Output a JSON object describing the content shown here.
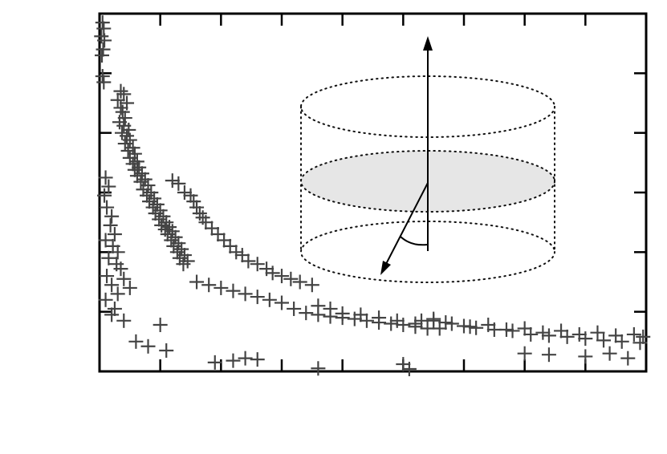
{
  "chart_data": {
    "type": "scatter",
    "title": "",
    "xlabel": "",
    "ylabel": "",
    "xlim": [
      0,
      9
    ],
    "ylim": [
      0,
      6
    ],
    "grid": false,
    "marker": "plus",
    "series": [
      {
        "color": "#444444",
        "points": [
          [
            0.05,
            5.85
          ],
          [
            0.07,
            5.75
          ],
          [
            0.03,
            5.62
          ],
          [
            0.08,
            5.55
          ],
          [
            0.06,
            5.4
          ],
          [
            0.04,
            5.3
          ],
          [
            0.05,
            4.95
          ],
          [
            0.07,
            4.85
          ],
          [
            0.35,
            4.7
          ],
          [
            0.4,
            4.65
          ],
          [
            0.3,
            4.55
          ],
          [
            0.45,
            4.5
          ],
          [
            0.35,
            4.42
          ],
          [
            0.38,
            4.35
          ],
          [
            0.42,
            4.25
          ],
          [
            0.33,
            4.18
          ],
          [
            0.4,
            4.12
          ],
          [
            0.48,
            4.05
          ],
          [
            0.37,
            4.0
          ],
          [
            0.45,
            3.95
          ],
          [
            0.5,
            3.88
          ],
          [
            0.42,
            3.82
          ],
          [
            0.55,
            3.75
          ],
          [
            0.47,
            3.7
          ],
          [
            0.58,
            3.65
          ],
          [
            0.5,
            3.58
          ],
          [
            0.62,
            3.52
          ],
          [
            0.55,
            3.48
          ],
          [
            0.65,
            3.42
          ],
          [
            0.58,
            3.38
          ],
          [
            0.7,
            3.32
          ],
          [
            0.62,
            3.28
          ],
          [
            0.75,
            3.22
          ],
          [
            0.68,
            3.18
          ],
          [
            0.8,
            3.12
          ],
          [
            0.72,
            3.05
          ],
          [
            0.85,
            3.0
          ],
          [
            0.78,
            2.95
          ],
          [
            0.9,
            2.9
          ],
          [
            0.82,
            2.85
          ],
          [
            0.95,
            2.8
          ],
          [
            0.88,
            2.75
          ],
          [
            1.0,
            2.7
          ],
          [
            0.92,
            2.65
          ],
          [
            1.05,
            2.6
          ],
          [
            0.98,
            2.55
          ],
          [
            1.1,
            2.5
          ],
          [
            1.02,
            2.45
          ],
          [
            1.15,
            2.42
          ],
          [
            1.08,
            2.38
          ],
          [
            1.2,
            2.35
          ],
          [
            1.12,
            2.3
          ],
          [
            1.25,
            2.25
          ],
          [
            1.18,
            2.2
          ],
          [
            1.3,
            2.15
          ],
          [
            1.22,
            2.1
          ],
          [
            1.35,
            2.05
          ],
          [
            1.28,
            2.0
          ],
          [
            1.4,
            1.95
          ],
          [
            1.32,
            1.9
          ],
          [
            1.45,
            1.85
          ],
          [
            1.38,
            1.8
          ],
          [
            0.1,
            3.25
          ],
          [
            0.15,
            3.1
          ],
          [
            0.08,
            2.95
          ],
          [
            0.12,
            2.75
          ],
          [
            0.2,
            2.6
          ],
          [
            0.18,
            2.45
          ],
          [
            0.25,
            2.3
          ],
          [
            0.1,
            2.2
          ],
          [
            0.22,
            2.1
          ],
          [
            0.3,
            2.0
          ],
          [
            0.15,
            1.9
          ],
          [
            0.28,
            1.8
          ],
          [
            0.35,
            1.72
          ],
          [
            0.12,
            1.6
          ],
          [
            0.4,
            1.55
          ],
          [
            0.2,
            1.45
          ],
          [
            0.5,
            1.4
          ],
          [
            0.3,
            1.3
          ],
          [
            0.1,
            1.2
          ],
          [
            0.25,
            1.05
          ],
          [
            1.2,
            3.2
          ],
          [
            1.3,
            3.15
          ],
          [
            1.4,
            3.0
          ],
          [
            1.5,
            2.95
          ],
          [
            1.55,
            2.85
          ],
          [
            1.6,
            2.75
          ],
          [
            1.65,
            2.65
          ],
          [
            1.7,
            2.58
          ],
          [
            1.75,
            2.5
          ],
          [
            1.85,
            2.4
          ],
          [
            1.95,
            2.3
          ],
          [
            2.05,
            2.2
          ],
          [
            2.15,
            2.1
          ],
          [
            2.25,
            2.0
          ],
          [
            2.35,
            1.95
          ],
          [
            2.45,
            1.85
          ],
          [
            2.6,
            1.8
          ],
          [
            2.75,
            1.72
          ],
          [
            2.85,
            1.65
          ],
          [
            3.0,
            1.6
          ],
          [
            3.15,
            1.55
          ],
          [
            3.3,
            1.5
          ],
          [
            3.5,
            1.45
          ],
          [
            1.6,
            1.5
          ],
          [
            1.8,
            1.45
          ],
          [
            2.0,
            1.4
          ],
          [
            2.2,
            1.35
          ],
          [
            2.4,
            1.3
          ],
          [
            2.6,
            1.25
          ],
          [
            2.8,
            1.2
          ],
          [
            3.0,
            1.15
          ],
          [
            3.2,
            1.05
          ],
          [
            3.4,
            0.98
          ],
          [
            3.6,
            0.95
          ],
          [
            3.8,
            0.92
          ],
          [
            4.0,
            0.9
          ],
          [
            4.2,
            0.88
          ],
          [
            4.4,
            0.85
          ],
          [
            4.6,
            0.82
          ],
          [
            4.8,
            0.8
          ],
          [
            5.0,
            0.78
          ],
          [
            5.2,
            0.75
          ],
          [
            5.4,
            0.72
          ],
          [
            5.6,
            0.72
          ],
          [
            3.6,
            1.1
          ],
          [
            3.8,
            1.05
          ],
          [
            4.0,
            0.97
          ],
          [
            4.3,
            0.95
          ],
          [
            4.6,
            0.9
          ],
          [
            4.9,
            0.85
          ],
          [
            5.2,
            0.8
          ],
          [
            5.5,
            0.85
          ],
          [
            5.8,
            0.8
          ],
          [
            6.1,
            0.75
          ],
          [
            6.4,
            0.78
          ],
          [
            6.7,
            0.7
          ],
          [
            7.0,
            0.72
          ],
          [
            7.3,
            0.65
          ],
          [
            7.6,
            0.68
          ],
          [
            7.9,
            0.62
          ],
          [
            8.2,
            0.65
          ],
          [
            8.5,
            0.6
          ],
          [
            8.8,
            0.62
          ],
          [
            8.95,
            0.58
          ],
          [
            5.3,
            0.85
          ],
          [
            5.5,
            0.88
          ],
          [
            5.7,
            0.82
          ],
          [
            6.0,
            0.76
          ],
          [
            6.2,
            0.73
          ],
          [
            6.5,
            0.7
          ],
          [
            6.8,
            0.68
          ],
          [
            7.1,
            0.62
          ],
          [
            7.4,
            0.6
          ],
          [
            7.7,
            0.58
          ],
          [
            8.0,
            0.55
          ],
          [
            8.3,
            0.52
          ],
          [
            8.6,
            0.5
          ],
          [
            8.9,
            0.48
          ],
          [
            0.2,
            0.95
          ],
          [
            0.4,
            0.85
          ],
          [
            0.6,
            0.5
          ],
          [
            0.8,
            0.42
          ],
          [
            1.1,
            0.35
          ],
          [
            1.0,
            0.78
          ],
          [
            1.9,
            0.15
          ],
          [
            2.2,
            0.18
          ],
          [
            2.4,
            0.22
          ],
          [
            2.6,
            0.2
          ],
          [
            3.6,
            0.05
          ],
          [
            5.0,
            0.12
          ],
          [
            5.1,
            0.04
          ],
          [
            7.0,
            0.3
          ],
          [
            7.4,
            0.28
          ],
          [
            8.0,
            0.25
          ],
          [
            8.4,
            0.3
          ],
          [
            8.7,
            0.22
          ]
        ]
      }
    ],
    "inset": {
      "type": "diagram",
      "description_shapes": [
        "dotted-cylinder",
        "shaded-midplane-ellipse",
        "vertical-arrow",
        "tilted-arrow",
        "angle-arc"
      ]
    }
  }
}
